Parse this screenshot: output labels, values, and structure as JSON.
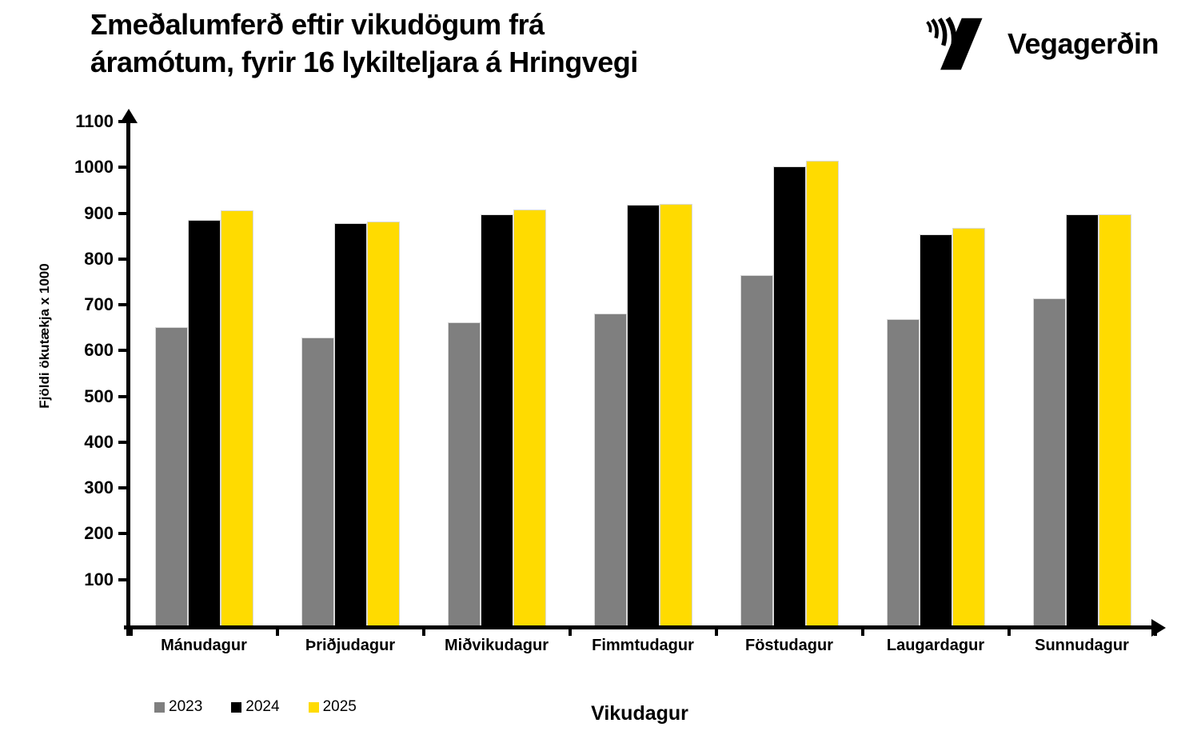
{
  "header": {
    "title_line1": "Σmeðalumferð eftir vikudögum frá",
    "title_line2": "áramótum, fyrir 16 lykilteljara á Hringvegi",
    "logo_text": "Vegagerðin"
  },
  "chart_data": {
    "type": "bar",
    "title": "Σmeðalumferð eftir vikudögum frá áramótum, fyrir 16 lykilteljara á Hringvegi",
    "xlabel": "Vikudagur",
    "ylabel": "Fjöldi ökutækja x 1000",
    "ylim": [
      0,
      1100
    ],
    "yticks": [
      100,
      200,
      300,
      400,
      500,
      600,
      700,
      800,
      900,
      1000,
      1100
    ],
    "grid": false,
    "legend_position": "bottom-left",
    "categories": [
      "Mánudagur",
      "Þriðjudagur",
      "Miðvikudagur",
      "Fimmtudagur",
      "Föstudagur",
      "Laugardagur",
      "Sunnudagur"
    ],
    "series": [
      {
        "name": "2023",
        "color": "#7F7F7F",
        "values": [
          651,
          628,
          661,
          681,
          765,
          668,
          714
        ]
      },
      {
        "name": "2024",
        "color": "#000000",
        "values": [
          885,
          879,
          897,
          918,
          1002,
          853,
          897
        ]
      },
      {
        "name": "2025",
        "color": "#FFDB00",
        "values": [
          906,
          882,
          908,
          921,
          1014,
          868,
          897
        ]
      }
    ]
  }
}
